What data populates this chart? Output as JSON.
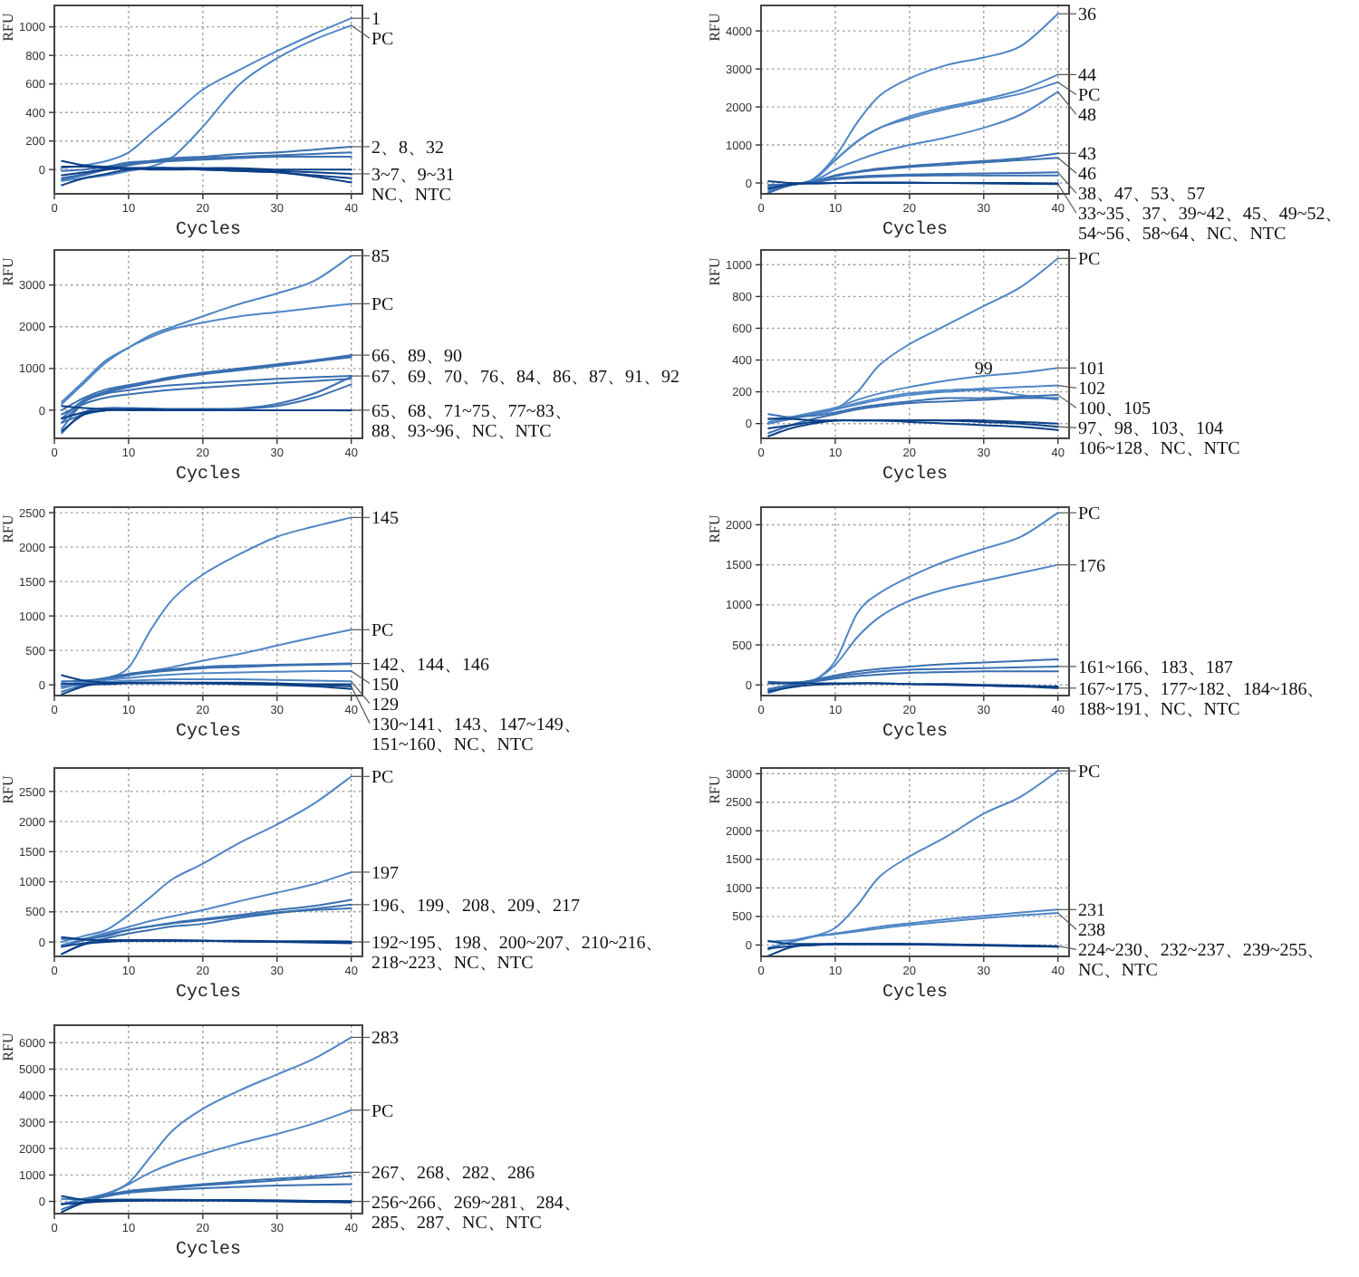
{
  "chart_data": [
    {
      "type": "line",
      "xlabel": "Cycles",
      "ylabel": "RFU",
      "x": [
        1,
        4,
        7,
        10,
        13,
        16,
        20,
        25,
        30,
        35,
        40
      ],
      "xlim": [
        0,
        41.5
      ],
      "xticks": [
        0,
        10,
        20,
        30,
        40
      ],
      "ylim": [
        -170,
        1150
      ],
      "yticks": [
        0,
        200,
        400,
        600,
        800,
        1000
      ],
      "grid": true,
      "series": [
        {
          "name": "1",
          "color": "#4f86c6",
          "values": [
            10,
            30,
            60,
            120,
            250,
            380,
            560,
            700,
            830,
            950,
            1060
          ]
        },
        {
          "name": "PC",
          "color": "#4f86c6",
          "values": [
            -80,
            -60,
            -40,
            -10,
            20,
            90,
            300,
            600,
            780,
            910,
            1010
          ]
        },
        {
          "name": "2、8、32",
          "color": "#3a6fb0",
          "values": [
            -60,
            -30,
            10,
            40,
            60,
            80,
            90,
            110,
            120,
            140,
            160
          ]
        },
        {
          "color": "#3a6fb0",
          "values": [
            -10,
            0,
            20,
            50,
            60,
            70,
            80,
            90,
            100,
            110,
            120
          ]
        },
        {
          "color": "#3a6fb0",
          "values": [
            -70,
            -40,
            0,
            30,
            50,
            60,
            70,
            80,
            90,
            90,
            90
          ]
        },
        {
          "name": "3~7、9~31\nNC、NTC",
          "color": "#0b3f86",
          "values": [
            -110,
            -60,
            -30,
            0,
            10,
            10,
            10,
            0,
            -10,
            -20,
            -30
          ]
        },
        {
          "color": "#0b3f86",
          "values": [
            20,
            20,
            10,
            10,
            0,
            0,
            0,
            -10,
            -20,
            -50,
            -90
          ]
        },
        {
          "color": "#0b3f86",
          "values": [
            -40,
            -20,
            0,
            10,
            10,
            10,
            0,
            -10,
            -20,
            -40,
            -60
          ]
        },
        {
          "color": "#0b3f86",
          "values": [
            60,
            30,
            20,
            10,
            10,
            10,
            10,
            10,
            0,
            0,
            0
          ]
        }
      ]
    },
    {
      "type": "line",
      "xlabel": "Cycles",
      "ylabel": "RFU",
      "x": [
        1,
        4,
        7,
        10,
        13,
        16,
        20,
        25,
        30,
        35,
        40
      ],
      "xlim": [
        0,
        41.5
      ],
      "xticks": [
        0,
        10,
        20,
        30,
        40
      ],
      "ylim": [
        -285,
        4670
      ],
      "yticks": [
        0,
        1000,
        2000,
        3000,
        4000
      ],
      "grid": true,
      "series": [
        {
          "name": "36",
          "color": "#4f86c6",
          "values": [
            -150,
            -50,
            100,
            700,
            1600,
            2300,
            2750,
            3100,
            3300,
            3600,
            4450
          ]
        },
        {
          "name": "44",
          "color": "#4f86c6",
          "values": [
            -100,
            -50,
            80,
            600,
            1100,
            1450,
            1750,
            2000,
            2200,
            2450,
            2850
          ]
        },
        {
          "name": "PC",
          "color": "#4f86c6",
          "values": [
            -200,
            -50,
            80,
            600,
            1100,
            1450,
            1700,
            1950,
            2150,
            2350,
            2650
          ]
        },
        {
          "name": "48",
          "color": "#4f86c6",
          "values": [
            -100,
            -50,
            50,
            350,
            600,
            800,
            1000,
            1200,
            1450,
            1800,
            2400
          ]
        },
        {
          "name": "43",
          "color": "#3a6fb0",
          "values": [
            -50,
            -40,
            40,
            200,
            300,
            380,
            450,
            520,
            580,
            650,
            780
          ]
        },
        {
          "name": "46",
          "color": "#3a6fb0",
          "values": [
            -250,
            -60,
            40,
            180,
            280,
            350,
            420,
            480,
            540,
            600,
            660
          ]
        },
        {
          "name": "38、47、53、57",
          "color": "#3a6fb0",
          "values": [
            -60,
            -30,
            30,
            120,
            170,
            200,
            220,
            240,
            250,
            260,
            280
          ]
        },
        {
          "color": "#3a6fb0",
          "values": [
            -260,
            -40,
            20,
            100,
            140,
            170,
            190,
            200,
            200,
            200,
            200
          ]
        },
        {
          "name": "33~35、37、39~42、45、49~52、\n54~56、58~64、NC、NTC",
          "color": "#0b3f86",
          "values": [
            -150,
            -40,
            -10,
            0,
            0,
            0,
            0,
            0,
            -10,
            -20,
            -30
          ]
        },
        {
          "color": "#0b3f86",
          "values": [
            50,
            0,
            -10,
            0,
            10,
            10,
            10,
            0,
            0,
            0,
            -10
          ]
        }
      ]
    },
    {
      "type": "line",
      "xlabel": "Cycles",
      "ylabel": "RFU",
      "x": [
        1,
        4,
        7,
        10,
        13,
        16,
        20,
        25,
        30,
        35,
        40
      ],
      "xlim": [
        0,
        41.5
      ],
      "xticks": [
        0,
        10,
        20,
        30,
        40
      ],
      "ylim": [
        -675,
        3840
      ],
      "yticks": [
        0,
        1000,
        2000,
        3000
      ],
      "grid": true,
      "series": [
        {
          "name": "85",
          "color": "#4f86c6",
          "values": [
            200,
            700,
            1200,
            1500,
            1800,
            2000,
            2250,
            2550,
            2800,
            3100,
            3700
          ]
        },
        {
          "name": "PC",
          "color": "#4f86c6",
          "values": [
            150,
            650,
            1150,
            1500,
            1750,
            1950,
            2100,
            2250,
            2350,
            2450,
            2550
          ]
        },
        {
          "name": "66、89、90",
          "color": "#3a6fb0",
          "values": [
            0,
            300,
            500,
            600,
            700,
            800,
            900,
            1000,
            1100,
            1200,
            1320
          ]
        },
        {
          "color": "#3a6fb0",
          "values": [
            -200,
            250,
            450,
            580,
            680,
            780,
            880,
            980,
            1080,
            1180,
            1300
          ]
        },
        {
          "color": "#3a6fb0",
          "values": [
            -450,
            200,
            420,
            550,
            660,
            760,
            860,
            960,
            1060,
            1170,
            1270
          ]
        },
        {
          "name": "67、69、70、76、84、86、87、91、92",
          "color": "#3a6fb0",
          "values": [
            -300,
            200,
            400,
            480,
            550,
            600,
            650,
            700,
            750,
            790,
            820
          ]
        },
        {
          "color": "#3a6fb0",
          "values": [
            -100,
            150,
            300,
            380,
            440,
            490,
            540,
            600,
            650,
            700,
            750
          ]
        },
        {
          "color": "#3a6fb0",
          "values": [
            -550,
            -50,
            50,
            50,
            40,
            30,
            30,
            40,
            150,
            400,
            800
          ]
        },
        {
          "color": "#3a6fb0",
          "values": [
            -300,
            -100,
            0,
            20,
            20,
            20,
            20,
            30,
            100,
            300,
            620
          ]
        },
        {
          "name": "65、68、71~75、77~83、\n88、93~96、NC、NTC",
          "color": "#0b3f86",
          "values": [
            -500,
            -100,
            0,
            20,
            20,
            10,
            10,
            0,
            0,
            0,
            0
          ]
        },
        {
          "color": "#0b3f86",
          "values": [
            100,
            50,
            20,
            10,
            0,
            0,
            0,
            0,
            0,
            0,
            0
          ]
        },
        {
          "color": "#0b3f86",
          "values": [
            -200,
            -50,
            0,
            0,
            0,
            0,
            0,
            0,
            0,
            0,
            -10
          ]
        }
      ]
    },
    {
      "type": "line",
      "xlabel": "Cycles",
      "ylabel": "RFU",
      "x": [
        1,
        4,
        7,
        10,
        13,
        16,
        20,
        25,
        30,
        35,
        40
      ],
      "xlim": [
        0,
        41.5
      ],
      "xticks": [
        0,
        10,
        20,
        30,
        40
      ],
      "ylim": [
        -93,
        1093
      ],
      "yticks": [
        0,
        200,
        400,
        600,
        800,
        1000
      ],
      "grid": true,
      "series": [
        {
          "name": "PC",
          "color": "#4f86c6",
          "values": [
            0,
            30,
            60,
            90,
            200,
            370,
            500,
            620,
            740,
            860,
            1040
          ]
        },
        {
          "name": "101",
          "color": "#4f86c6",
          "values": [
            10,
            40,
            70,
            100,
            150,
            190,
            230,
            270,
            300,
            320,
            350
          ]
        },
        {
          "color": "#4f86c6",
          "values": [
            0,
            30,
            60,
            90,
            120,
            150,
            180,
            200,
            210,
            180,
            150
          ]
        },
        {
          "name": "102",
          "color": "#4f86c6",
          "values": [
            30,
            40,
            60,
            90,
            130,
            160,
            190,
            210,
            220,
            230,
            240
          ]
        },
        {
          "name": "100、105",
          "color": "#3a6fb0",
          "values": [
            60,
            40,
            50,
            70,
            100,
            120,
            140,
            160,
            160,
            170,
            180
          ]
        },
        {
          "color": "#3a6fb0",
          "values": [
            -60,
            -10,
            30,
            60,
            90,
            110,
            130,
            140,
            150,
            160,
            160
          ]
        },
        {
          "name": "97、98、103、104\n106~128、NC、NTC",
          "color": "#0b3f86",
          "values": [
            -30,
            -10,
            10,
            20,
            20,
            20,
            20,
            20,
            10,
            0,
            -20
          ]
        },
        {
          "color": "#0b3f86",
          "values": [
            30,
            30,
            20,
            20,
            20,
            20,
            20,
            20,
            20,
            10,
            0
          ]
        },
        {
          "color": "#0b3f86",
          "values": [
            -80,
            -30,
            0,
            20,
            20,
            20,
            10,
            0,
            -10,
            -20,
            -40
          ]
        }
      ],
      "annotations": [
        {
          "text": "99",
          "x": 30,
          "y": 210
        }
      ]
    },
    {
      "type": "line",
      "xlabel": "Cycles",
      "ylabel": "RFU",
      "x": [
        1,
        4,
        7,
        10,
        13,
        16,
        20,
        25,
        30,
        35,
        40
      ],
      "xlim": [
        0,
        41.5
      ],
      "xticks": [
        0,
        10,
        20,
        30,
        40
      ],
      "ylim": [
        -156,
        2580
      ],
      "yticks": [
        0,
        500,
        1000,
        1500,
        2000,
        2500
      ],
      "grid": true,
      "series": [
        {
          "name": "145",
          "color": "#4f86c6",
          "values": [
            0,
            40,
            100,
            250,
            800,
            1250,
            1600,
            1900,
            2150,
            2300,
            2430
          ]
        },
        {
          "name": "PC",
          "color": "#4f86c6",
          "values": [
            -50,
            20,
            80,
            140,
            200,
            260,
            350,
            450,
            570,
            690,
            800
          ]
        },
        {
          "name": "142、144、146",
          "color": "#3a6fb0",
          "values": [
            50,
            60,
            100,
            160,
            200,
            230,
            260,
            280,
            290,
            300,
            310
          ]
        },
        {
          "color": "#3a6fb0",
          "values": [
            -100,
            0,
            80,
            140,
            180,
            210,
            240,
            260,
            280,
            290,
            300
          ]
        },
        {
          "name": "150",
          "color": "#4f86c6",
          "values": [
            -20,
            30,
            70,
            100,
            130,
            150,
            170,
            180,
            190,
            200,
            200
          ]
        },
        {
          "name": "129",
          "color": "#4f86c6",
          "values": [
            -30,
            10,
            40,
            60,
            70,
            80,
            80,
            80,
            70,
            60,
            50
          ]
        },
        {
          "name": "130~141、143、147~149、\n151~160、NC、NTC",
          "color": "#0b3f86",
          "values": [
            -140,
            -20,
            20,
            30,
            30,
            30,
            20,
            20,
            10,
            0,
            -20
          ]
        },
        {
          "color": "#0b3f86",
          "values": [
            140,
            60,
            30,
            30,
            30,
            30,
            30,
            30,
            20,
            10,
            10
          ]
        },
        {
          "color": "#0b3f86",
          "values": [
            20,
            10,
            10,
            20,
            20,
            20,
            20,
            10,
            0,
            -20,
            -60
          ]
        }
      ]
    },
    {
      "type": "line",
      "xlabel": "Cycles",
      "ylabel": "RFU",
      "x": [
        1,
        4,
        7,
        10,
        13,
        16,
        20,
        25,
        30,
        35,
        40
      ],
      "xlim": [
        0,
        41.5
      ],
      "xticks": [
        0,
        10,
        20,
        30,
        40
      ],
      "ylim": [
        -133,
        2220
      ],
      "yticks": [
        0,
        500,
        1000,
        1500,
        2000
      ],
      "grid": true,
      "series": [
        {
          "name": "PC",
          "color": "#4f86c6",
          "values": [
            -50,
            0,
            50,
            300,
            900,
            1150,
            1350,
            1550,
            1700,
            1850,
            2150
          ]
        },
        {
          "name": "176",
          "color": "#4f86c6",
          "values": [
            -50,
            0,
            50,
            250,
            600,
            850,
            1050,
            1200,
            1300,
            1400,
            1500
          ]
        },
        {
          "color": "#3a6fb0",
          "values": [
            -60,
            0,
            60,
            120,
            170,
            200,
            230,
            260,
            280,
            300,
            320
          ]
        },
        {
          "name": "161~166、183、187",
          "color": "#3a6fb0",
          "values": [
            40,
            30,
            50,
            100,
            140,
            170,
            190,
            200,
            210,
            220,
            230
          ]
        },
        {
          "color": "#3a6fb0",
          "values": [
            -100,
            -20,
            40,
            80,
            110,
            130,
            150,
            160,
            170,
            170,
            170
          ]
        },
        {
          "name": "167~175、177~182、184~186、\n188~191、NC、NTC",
          "color": "#0b3f86",
          "values": [
            -80,
            -30,
            0,
            10,
            20,
            20,
            10,
            0,
            -10,
            -20,
            -40
          ]
        },
        {
          "color": "#0b3f86",
          "values": [
            20,
            20,
            20,
            20,
            20,
            20,
            10,
            10,
            0,
            -10,
            -20
          ]
        }
      ]
    },
    {
      "type": "line",
      "xlabel": "Cycles",
      "ylabel": "RFU",
      "x": [
        1,
        4,
        7,
        10,
        13,
        16,
        20,
        25,
        30,
        35,
        40
      ],
      "xlim": [
        0,
        41.5
      ],
      "xticks": [
        0,
        10,
        20,
        30,
        40
      ],
      "ylim": [
        -240,
        2890
      ],
      "yticks": [
        0,
        500,
        1000,
        1500,
        2000,
        2500
      ],
      "grid": true,
      "series": [
        {
          "name": "PC",
          "color": "#4f86c6",
          "values": [
            0,
            100,
            200,
            450,
            750,
            1050,
            1300,
            1650,
            1950,
            2300,
            2750
          ]
        },
        {
          "name": "197",
          "color": "#4f86c6",
          "values": [
            -50,
            50,
            150,
            250,
            350,
            430,
            530,
            680,
            820,
            960,
            1160
          ]
        },
        {
          "color": "#3a6fb0",
          "values": [
            50,
            50,
            100,
            200,
            260,
            320,
            380,
            450,
            530,
            600,
            700
          ]
        },
        {
          "name": "196、199、208、209、217",
          "color": "#3a6fb0",
          "values": [
            -80,
            30,
            120,
            200,
            260,
            310,
            360,
            430,
            490,
            550,
            620
          ]
        },
        {
          "color": "#3a6fb0",
          "values": [
            -200,
            -30,
            60,
            140,
            200,
            260,
            300,
            400,
            480,
            530,
            560
          ]
        },
        {
          "name": "192~195、198、200~207、210~216、\n218~223、NC、NTC",
          "color": "#0b3f86",
          "values": [
            -200,
            -40,
            0,
            20,
            20,
            20,
            20,
            20,
            10,
            10,
            0
          ]
        },
        {
          "color": "#0b3f86",
          "values": [
            80,
            40,
            30,
            30,
            30,
            30,
            20,
            10,
            10,
            10,
            10
          ]
        },
        {
          "color": "#0b3f86",
          "values": [
            -80,
            -20,
            10,
            20,
            20,
            20,
            20,
            10,
            0,
            -10,
            -20
          ]
        }
      ]
    },
    {
      "type": "line",
      "xlabel": "Cycles",
      "ylabel": "RFU",
      "x": [
        1,
        4,
        7,
        10,
        13,
        16,
        20,
        25,
        30,
        35,
        40
      ],
      "xlim": [
        0,
        41.5
      ],
      "xticks": [
        0,
        10,
        20,
        30,
        40
      ],
      "ylim": [
        -200,
        3100
      ],
      "yticks": [
        0,
        500,
        1000,
        1500,
        2000,
        2500,
        3000
      ],
      "grid": true,
      "series": [
        {
          "name": "PC",
          "color": "#4f86c6",
          "values": [
            -50,
            50,
            150,
            300,
            700,
            1200,
            1550,
            1900,
            2300,
            2600,
            3050
          ]
        },
        {
          "name": "231",
          "color": "#4f86c6",
          "values": [
            60,
            80,
            150,
            200,
            260,
            320,
            380,
            450,
            510,
            570,
            620
          ]
        },
        {
          "name": "238",
          "color": "#4f86c6",
          "values": [
            -80,
            60,
            150,
            190,
            240,
            290,
            350,
            410,
            470,
            520,
            560
          ]
        },
        {
          "name": "224~230、232~237、239~255、\nNC、NTC",
          "color": "#0b3f86",
          "values": [
            -190,
            -40,
            0,
            20,
            20,
            20,
            20,
            10,
            0,
            -10,
            -20
          ]
        },
        {
          "color": "#0b3f86",
          "values": [
            70,
            20,
            20,
            20,
            20,
            20,
            10,
            10,
            0,
            -10,
            -30
          ]
        },
        {
          "color": "#0b3f86",
          "values": [
            -60,
            -20,
            0,
            10,
            10,
            10,
            10,
            0,
            -10,
            -20,
            -30
          ]
        }
      ]
    },
    {
      "type": "line",
      "xlabel": "Cycles",
      "ylabel": "RFU",
      "x": [
        1,
        4,
        7,
        10,
        13,
        16,
        20,
        25,
        30,
        35,
        40
      ],
      "xlim": [
        0,
        41.5
      ],
      "xticks": [
        0,
        10,
        20,
        30,
        40
      ],
      "ylim": [
        -460,
        6660
      ],
      "yticks": [
        0,
        1000,
        2000,
        3000,
        4000,
        5000,
        6000
      ],
      "grid": true,
      "series": [
        {
          "name": "283",
          "color": "#4f86c6",
          "values": [
            -100,
            100,
            300,
            700,
            1700,
            2700,
            3500,
            4200,
            4800,
            5400,
            6200
          ]
        },
        {
          "name": "PC",
          "color": "#4f86c6",
          "values": [
            -100,
            100,
            250,
            650,
            1100,
            1450,
            1800,
            2200,
            2550,
            2950,
            3450
          ]
        },
        {
          "name": "267、268、282、286",
          "color": "#3a6fb0",
          "values": [
            100,
            100,
            250,
            400,
            480,
            560,
            650,
            760,
            860,
            950,
            1100
          ]
        },
        {
          "color": "#3a6fb0",
          "values": [
            -300,
            0,
            200,
            350,
            440,
            520,
            610,
            700,
            790,
            880,
            950
          ]
        },
        {
          "color": "#3a6fb0",
          "values": [
            -100,
            0,
            200,
            330,
            400,
            450,
            500,
            550,
            600,
            630,
            650
          ]
        },
        {
          "name": "256~266、269~281、284、\n285、287、NC、NTC",
          "color": "#0b3f86",
          "values": [
            -400,
            -50,
            50,
            60,
            60,
            60,
            50,
            50,
            40,
            20,
            0
          ]
        },
        {
          "color": "#0b3f86",
          "values": [
            200,
            60,
            60,
            60,
            60,
            50,
            50,
            40,
            30,
            20,
            10
          ]
        },
        {
          "color": "#0b3f86",
          "values": [
            -100,
            -50,
            0,
            20,
            30,
            30,
            30,
            20,
            0,
            -20,
            -40
          ]
        }
      ]
    }
  ]
}
